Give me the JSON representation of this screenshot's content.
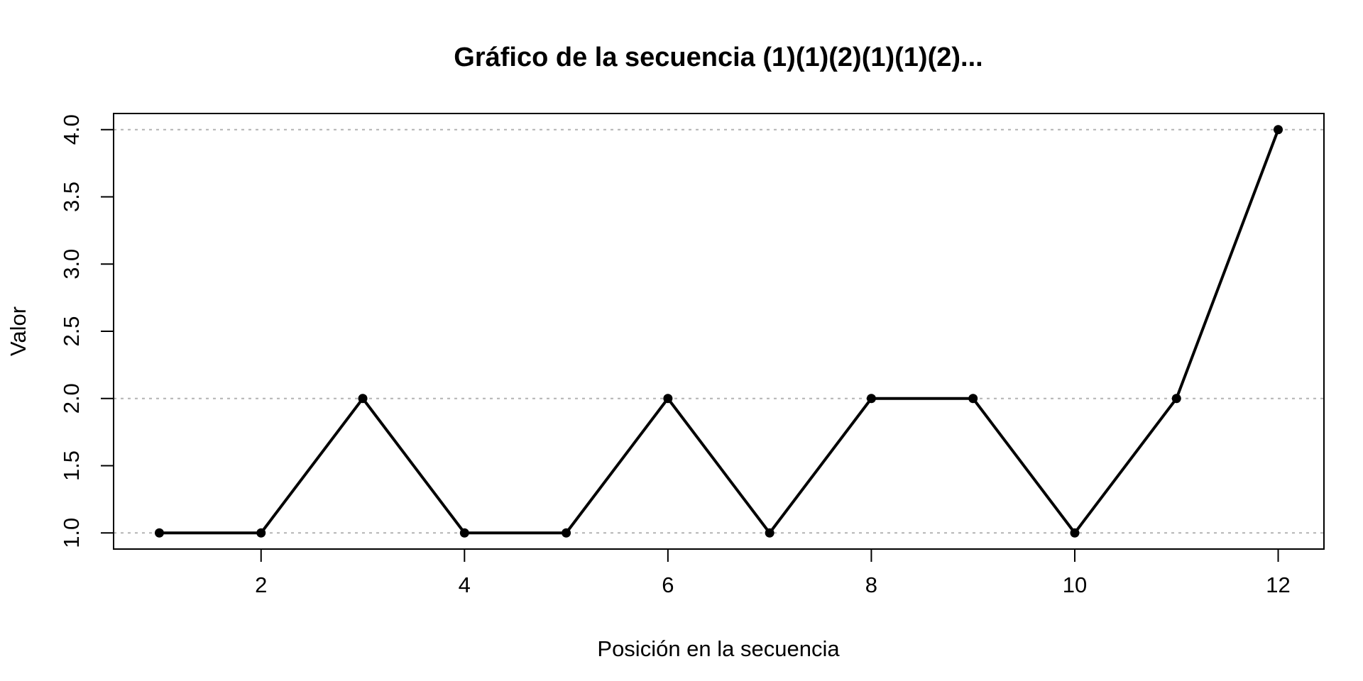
{
  "chart_data": {
    "type": "line",
    "title": "Gráfico de la secuencia (1)(1)(2)(1)(1)(2)...",
    "xlabel": "Posición en la secuencia",
    "ylabel": "Valor",
    "x": [
      1,
      2,
      3,
      4,
      5,
      6,
      7,
      8,
      9,
      10,
      11,
      12
    ],
    "series": [
      {
        "values": [
          1,
          1,
          2,
          1,
          1,
          2,
          1,
          2,
          2,
          1,
          2,
          4
        ],
        "color": "#000000"
      }
    ],
    "xlim": [
      0.55,
      12.45
    ],
    "ylim": [
      0.88,
      4.12
    ],
    "xticks": [
      2,
      4,
      6,
      8,
      10,
      12
    ],
    "xtick_labels": [
      "2",
      "4",
      "6",
      "8",
      "10",
      "12"
    ],
    "yticks": [
      1.0,
      1.5,
      2.0,
      2.5,
      3.0,
      3.5,
      4.0
    ],
    "ytick_labels": [
      "1.0",
      "1.5",
      "2.0",
      "2.5",
      "3.0",
      "3.5",
      "4.0"
    ],
    "reference_lines_y": [
      1,
      2,
      4
    ],
    "reference_line_color": "#b3b3b3",
    "grid": false,
    "legend": "none"
  }
}
